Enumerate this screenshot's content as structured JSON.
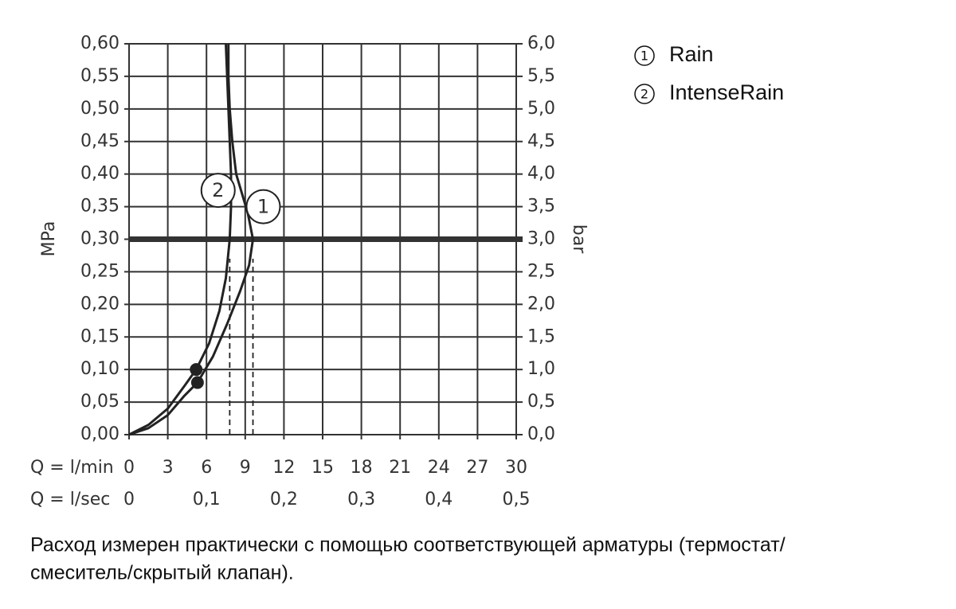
{
  "chart_data": {
    "type": "line",
    "ylabel": "MPa",
    "y2label": "bar",
    "xlabel": "Q = l/min",
    "x2label": "Q = l/sec",
    "xlim": [
      0,
      30
    ],
    "xticks": [
      0,
      3,
      6,
      9,
      12,
      15,
      18,
      21,
      24,
      27,
      30
    ],
    "x2lim": [
      0,
      0.5
    ],
    "x2ticks": [
      0,
      {
        "value": 0.1,
        "label": "0,1"
      },
      {
        "value": 0.2,
        "label": "0,2"
      },
      {
        "value": 0.3,
        "label": "0,3"
      },
      {
        "value": 0.4,
        "label": "0,4"
      },
      {
        "value": 0.5,
        "label": "0,5"
      }
    ],
    "ylim": [
      0,
      0.6
    ],
    "yticks": [
      {
        "value": 0,
        "label": "0,00"
      },
      {
        "value": 0.05,
        "label": "0,05"
      },
      {
        "value": 0.1,
        "label": "0,10"
      },
      {
        "value": 0.15,
        "label": "0,15"
      },
      {
        "value": 0.2,
        "label": "0,20"
      },
      {
        "value": 0.25,
        "label": "0,25"
      },
      {
        "value": 0.3,
        "label": "0,30"
      },
      {
        "value": 0.35,
        "label": "0,35"
      },
      {
        "value": 0.4,
        "label": "0,40"
      },
      {
        "value": 0.45,
        "label": "0,45"
      },
      {
        "value": 0.5,
        "label": "0,50"
      },
      {
        "value": 0.55,
        "label": "0,55"
      },
      {
        "value": 0.6,
        "label": "0,60"
      }
    ],
    "y2lim": [
      0,
      6
    ],
    "y2ticks": [
      {
        "value": 0,
        "label": "0,0"
      },
      {
        "value": 0.5,
        "label": "0,5"
      },
      {
        "value": 1,
        "label": "1,0"
      },
      {
        "value": 1.5,
        "label": "1,5"
      },
      {
        "value": 2,
        "label": "2,0"
      },
      {
        "value": 2.5,
        "label": "2,5"
      },
      {
        "value": 3,
        "label": "3,0"
      },
      {
        "value": 3.5,
        "label": "3,5"
      },
      {
        "value": 4,
        "label": "4,0"
      },
      {
        "value": 4.5,
        "label": "4,5"
      },
      {
        "value": 5,
        "label": "5,0"
      },
      {
        "value": 5.5,
        "label": "5,5"
      },
      {
        "value": 6,
        "label": "6,0"
      }
    ],
    "grid": true,
    "color": "#222222",
    "highlight_y": 0.3,
    "series": [
      {
        "name": "Rain",
        "label": "1",
        "color": "#222222",
        "x": [
          0,
          1.5,
          3,
          4.3,
          5.3,
          6.5,
          7.6,
          8.6,
          9.3,
          9.6,
          9.2,
          8.3,
          8.0,
          7.8,
          7.7,
          7.7
        ],
        "values": [
          0,
          0.01,
          0.03,
          0.06,
          0.08,
          0.12,
          0.17,
          0.22,
          0.26,
          0.3,
          0.34,
          0.4,
          0.45,
          0.5,
          0.55,
          0.6
        ]
      },
      {
        "name": "IntenseRain",
        "label": "2",
        "color": "#222222",
        "x": [
          0,
          1.5,
          3,
          4.3,
          5.2,
          6.2,
          7.0,
          7.5,
          7.8,
          7.9,
          7.9,
          7.8,
          7.7,
          7.6,
          7.5
        ],
        "values": [
          0,
          0.015,
          0.04,
          0.075,
          0.1,
          0.14,
          0.19,
          0.24,
          0.3,
          0.35,
          0.4,
          0.45,
          0.5,
          0.55,
          0.6
        ]
      }
    ],
    "points": [
      {
        "x": 5.2,
        "y": 0.1
      },
      {
        "x": 5.3,
        "y": 0.08
      }
    ],
    "reference_lines": [
      {
        "x": 7.8,
        "from": 0,
        "to": 0.27
      },
      {
        "x": 9.6,
        "from": 0,
        "to": 0.27
      }
    ],
    "annotations": [
      {
        "text": "2",
        "x": 6.9,
        "y": 0.375
      },
      {
        "text": "1",
        "x": 10.4,
        "y": 0.35
      }
    ],
    "footnote": [
      "Расход измерен практически с помощью соответствующей арматуры (термостат/",
      "смеситель/скрытый клапан)."
    ]
  }
}
